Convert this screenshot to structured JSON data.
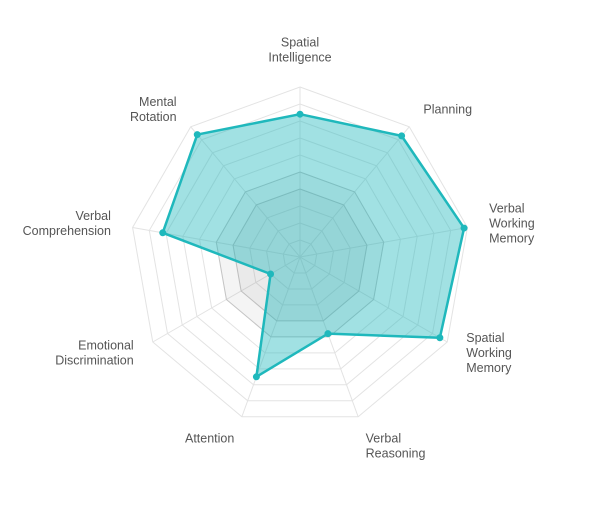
{
  "chart_data": {
    "type": "radar",
    "axes": [
      {
        "label": [
          "Spatial",
          "Intelligence"
        ]
      },
      {
        "label": [
          "Planning"
        ]
      },
      {
        "label": [
          "Verbal",
          "Working",
          "Memory"
        ]
      },
      {
        "label": [
          "Spatial",
          "Working",
          "Memory"
        ]
      },
      {
        "label": [
          "Verbal",
          "Reasoning"
        ]
      },
      {
        "label": [
          "Attention"
        ]
      },
      {
        "label": [
          "Emotional",
          "Discrimination"
        ]
      },
      {
        "label": [
          "Verbal",
          "Comprehension"
        ]
      },
      {
        "label": [
          "Mental",
          "Rotation"
        ]
      }
    ],
    "range": [
      0,
      10
    ],
    "grid_levels": 10,
    "series": [
      {
        "values": [
          8.4,
          9.3,
          9.8,
          9.5,
          4.8,
          7.5,
          2.0,
          8.2,
          9.4
        ],
        "color": "#1fb8bc",
        "fill": "rgba(31,184,188,0.42)"
      }
    ],
    "inner_bands": [
      {
        "level": 5.0,
        "fill": "rgba(150,150,150,0.10)"
      },
      {
        "level": 4.0,
        "fill": "rgba(150,150,150,0.10)"
      }
    ]
  }
}
